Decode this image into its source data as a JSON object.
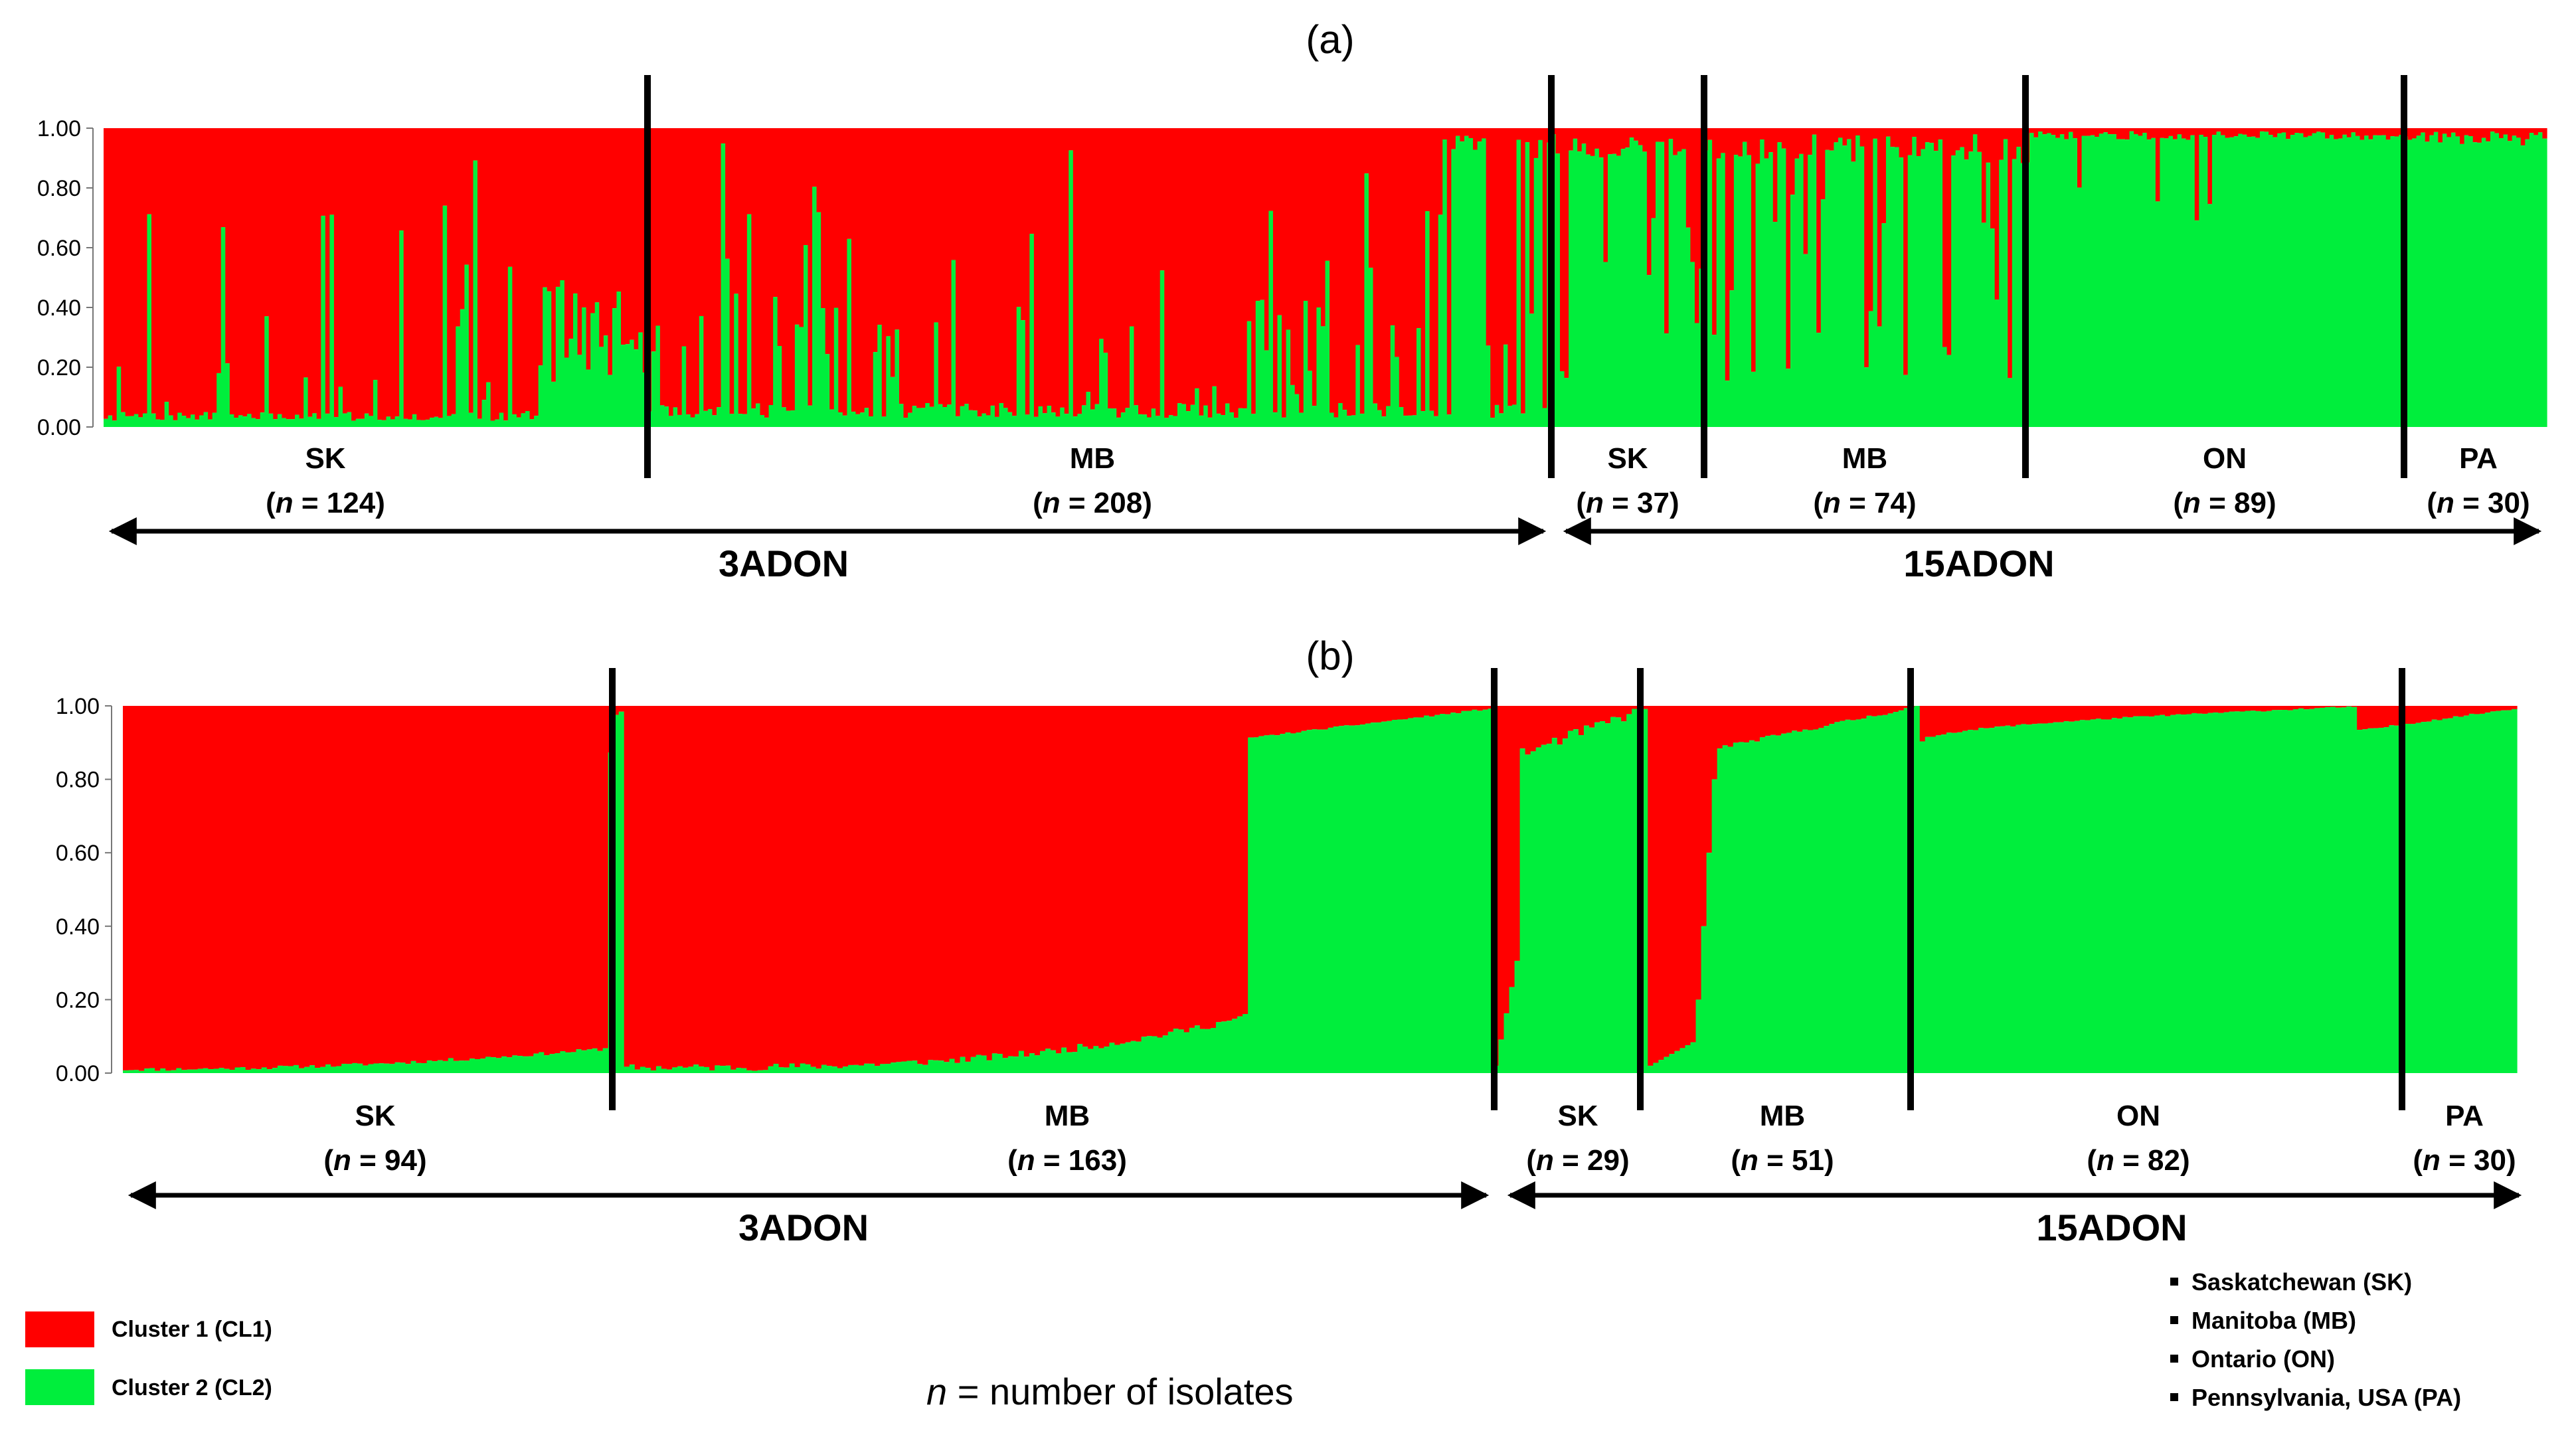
{
  "colors": {
    "cluster1": "#ff0000",
    "cluster2": "#00ee3c",
    "divider": "#000000"
  },
  "chart_data": [
    {
      "type": "bar",
      "panel_label": "(a)",
      "ylim": [
        0,
        1.0
      ],
      "y_ticks": [
        "1.00",
        "0.80",
        "0.60",
        "0.40",
        "0.20",
        "0.00"
      ],
      "stacked": true,
      "series": [
        {
          "name": "Cluster 1 (CL1)",
          "color": "#ff0000"
        },
        {
          "name": "Cluster 2 (CL2)",
          "color": "#00ee3c"
        }
      ],
      "groups": [
        {
          "label": "SK",
          "n_label": "124",
          "n": 124,
          "type": "3ADON"
        },
        {
          "label": "MB",
          "n_label": "208",
          "n": 208,
          "type": "3ADON"
        },
        {
          "label": "SK",
          "n_label": "37",
          "n": 37,
          "type": "15ADON"
        },
        {
          "label": "MB",
          "n_label": "74",
          "n": 74,
          "type": "15ADON"
        },
        {
          "label": "ON",
          "n_label": "89",
          "n": 89,
          "type": "15ADON"
        },
        {
          "label": "PA",
          "n_label": "30",
          "n": 30,
          "type": "15ADON"
        }
      ],
      "type_labels": [
        "3ADON",
        "15ADON"
      ]
    },
    {
      "type": "bar",
      "panel_label": "(b)",
      "ylim": [
        0,
        1.0
      ],
      "y_ticks": [
        "1.00",
        "0.80",
        "0.60",
        "0.40",
        "0.20",
        "0.00"
      ],
      "stacked": true,
      "series": [
        {
          "name": "Cluster 1 (CL1)",
          "color": "#ff0000"
        },
        {
          "name": "Cluster 2 (CL2)",
          "color": "#00ee3c"
        }
      ],
      "groups": [
        {
          "label": "SK",
          "n_label": "94",
          "n": 94,
          "type": "3ADON"
        },
        {
          "label": "MB",
          "n_label": "163",
          "n": 163,
          "type": "3ADON"
        },
        {
          "label": "SK",
          "n_label": "29",
          "n": 29,
          "type": "15ADON"
        },
        {
          "label": "MB",
          "n_label": "51",
          "n": 51,
          "type": "15ADON"
        },
        {
          "label": "ON",
          "n_label": "82",
          "n": 82,
          "type": "15ADON"
        },
        {
          "label": "PA",
          "n_label": "30",
          "n": 30,
          "type": "15ADON"
        }
      ],
      "type_labels": [
        "3ADON",
        "15ADON"
      ]
    }
  ],
  "legend": {
    "items": [
      {
        "label": "Cluster 1 (CL1)",
        "color": "#ff0000"
      },
      {
        "label": "Cluster 2 (CL2)",
        "color": "#00ee3c"
      }
    ],
    "n_note_var": "n",
    "n_note_text": " = number of isolates",
    "n_equals": " = ",
    "provinces": [
      "Saskatchewan (SK)",
      "Manitoba (MB)",
      "Ontario (ON)",
      "Pennsylvania, USA (PA)"
    ]
  }
}
